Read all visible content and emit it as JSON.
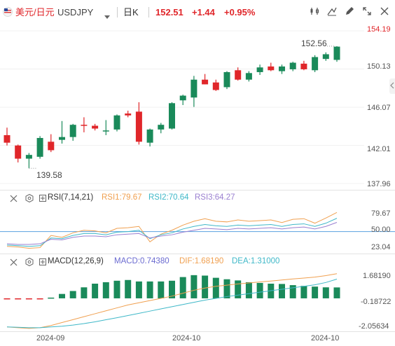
{
  "header": {
    "symbol_cn": "美元/日元",
    "symbol": "USDJPY",
    "period": "日K",
    "price": "152.51",
    "change": "+1.44",
    "change_pct": "+0.95%"
  },
  "colors": {
    "up": "#1a8a5a",
    "down": "#e0262a",
    "rsi1": "#f0a050",
    "rsi2": "#3fb8c8",
    "rsi3": "#9a7fd0",
    "macd": "#6a6ad0",
    "dif": "#f0a050",
    "dea": "#3fb8c8"
  },
  "icons": [
    "flag-icon",
    "chevron-down-icon",
    "candle-type-icon",
    "draw-icon",
    "pen-icon",
    "expand-icon",
    "close-icon",
    "zoom-out-icon",
    "settings-icon"
  ],
  "main": {
    "y_labels": [
      "154.19",
      "150.13",
      "146.07",
      "142.01",
      "137.96"
    ],
    "max_label": "152.56",
    "min_label": "139.58"
  },
  "rsi": {
    "name": "RSI(7,14,21)",
    "rsi1": "RSI1:79.67",
    "rsi2": "RSI2:70.64",
    "rsi3": "RSI3:64.27",
    "y_labels": [
      "79.67",
      "50.00",
      "23.04"
    ]
  },
  "macd": {
    "name": "MACD(12,26,9)",
    "macd": "MACD:0.74380",
    "dif": "DIF:1.68190",
    "dea": "DEA:1.31000",
    "y_labels": [
      "1.68190",
      "-0.18722",
      "-2.05634"
    ]
  },
  "x_labels": [
    "2024-09",
    "2024-10",
    "2024-10"
  ],
  "chart_data": [
    {
      "type": "candlestick",
      "title": "USDJPY",
      "ylim": [
        137.96,
        154.19
      ],
      "candles": [
        {
          "o": 143.1,
          "h": 143.9,
          "l": 142.0,
          "c": 142.3
        },
        {
          "o": 142.0,
          "h": 142.1,
          "l": 140.2,
          "c": 140.6
        },
        {
          "o": 140.6,
          "h": 141.2,
          "l": 139.58,
          "c": 141.0
        },
        {
          "o": 140.8,
          "h": 143.0,
          "l": 140.6,
          "c": 142.8
        },
        {
          "o": 142.4,
          "h": 143.2,
          "l": 141.3,
          "c": 141.5
        },
        {
          "o": 142.6,
          "h": 144.6,
          "l": 142.2,
          "c": 142.9
        },
        {
          "o": 142.9,
          "h": 144.3,
          "l": 142.5,
          "c": 144.2
        },
        {
          "o": 144.2,
          "h": 145.0,
          "l": 143.4,
          "c": 144.1
        },
        {
          "o": 144.1,
          "h": 144.3,
          "l": 143.6,
          "c": 143.8
        },
        {
          "o": 143.5,
          "h": 144.7,
          "l": 143.1,
          "c": 143.6
        },
        {
          "o": 143.7,
          "h": 145.3,
          "l": 143.5,
          "c": 145.2
        },
        {
          "o": 145.4,
          "h": 145.7,
          "l": 145.0,
          "c": 145.2
        },
        {
          "o": 145.6,
          "h": 146.6,
          "l": 142.1,
          "c": 142.4
        },
        {
          "o": 142.3,
          "h": 143.8,
          "l": 141.9,
          "c": 143.7
        },
        {
          "o": 143.7,
          "h": 144.4,
          "l": 143.3,
          "c": 144.2
        },
        {
          "o": 143.8,
          "h": 146.6,
          "l": 143.7,
          "c": 146.5
        },
        {
          "o": 146.8,
          "h": 147.4,
          "l": 146.3,
          "c": 147.3
        },
        {
          "o": 147.1,
          "h": 149.4,
          "l": 146.1,
          "c": 149.0
        },
        {
          "o": 149.0,
          "h": 149.6,
          "l": 148.5,
          "c": 148.5
        },
        {
          "o": 148.7,
          "h": 149.0,
          "l": 147.8,
          "c": 147.9
        },
        {
          "o": 148.2,
          "h": 149.9,
          "l": 148.0,
          "c": 149.8
        },
        {
          "o": 150.0,
          "h": 150.3,
          "l": 148.9,
          "c": 149.0
        },
        {
          "o": 149.0,
          "h": 149.9,
          "l": 148.8,
          "c": 149.7
        },
        {
          "o": 149.8,
          "h": 150.6,
          "l": 149.5,
          "c": 150.3
        },
        {
          "o": 150.4,
          "h": 150.8,
          "l": 149.9,
          "c": 150.0
        },
        {
          "o": 149.9,
          "h": 150.6,
          "l": 149.6,
          "c": 150.4
        },
        {
          "o": 150.1,
          "h": 150.9,
          "l": 149.9,
          "c": 150.8
        },
        {
          "o": 150.7,
          "h": 151.0,
          "l": 150.0,
          "c": 150.1
        },
        {
          "o": 150.0,
          "h": 151.6,
          "l": 149.8,
          "c": 151.4
        },
        {
          "o": 151.2,
          "h": 151.9,
          "l": 151.0,
          "c": 151.7
        },
        {
          "o": 151.1,
          "h": 152.56,
          "l": 150.9,
          "c": 152.51
        }
      ]
    },
    {
      "type": "line",
      "title": "RSI(7,14,21)",
      "ylim": [
        23.04,
        79.67
      ],
      "series": [
        {
          "name": "RSI1",
          "values": [
            27,
            26,
            24,
            25,
            44,
            41,
            48,
            52,
            51,
            48,
            55,
            56,
            58,
            34,
            46,
            52,
            60,
            66,
            70,
            66,
            65,
            68,
            66,
            67,
            68,
            64,
            69,
            70,
            63,
            71,
            79.67
          ]
        },
        {
          "name": "RSI2",
          "values": [
            29,
            28,
            27,
            28,
            40,
            39,
            44,
            47,
            47,
            45,
            49,
            50,
            52,
            39,
            45,
            48,
            54,
            58,
            61,
            59,
            58,
            60,
            59,
            60,
            61,
            58,
            61,
            62,
            58,
            63,
            70.64
          ]
        },
        {
          "name": "RSI3",
          "values": [
            31,
            30,
            30,
            31,
            38,
            37,
            41,
            43,
            43,
            42,
            45,
            46,
            47,
            40,
            43,
            45,
            49,
            52,
            55,
            54,
            53,
            55,
            54,
            55,
            56,
            54,
            56,
            57,
            54,
            58,
            64.27
          ]
        }
      ]
    },
    {
      "type": "bar",
      "title": "MACD(12,26,9)",
      "ylim": [
        -2.05634,
        1.6819
      ],
      "values": [
        -0.02,
        -0.05,
        -0.06,
        -0.05,
        0.05,
        0.3,
        0.5,
        0.75,
        1.0,
        1.1,
        1.2,
        1.25,
        1.15,
        1.15,
        1.15,
        1.2,
        1.45,
        1.58,
        1.55,
        1.4,
        1.3,
        1.22,
        1.1,
        1.05,
        1.0,
        0.98,
        0.9,
        0.85,
        0.8,
        0.75,
        0.7438
      ],
      "series": [
        {
          "name": "DIF",
          "values": [
            -1.95,
            -2.0,
            -2.05,
            -2.0,
            -1.85,
            -1.65,
            -1.45,
            -1.25,
            -1.05,
            -0.85,
            -0.65,
            -0.45,
            -0.3,
            -0.15,
            0.0,
            0.15,
            0.35,
            0.55,
            0.7,
            0.82,
            0.9,
            0.98,
            1.05,
            1.12,
            1.18,
            1.25,
            1.32,
            1.38,
            1.45,
            1.55,
            1.6819
          ]
        },
        {
          "name": "DEA",
          "values": [
            -1.95,
            -1.97,
            -2.0,
            -2.0,
            -1.95,
            -1.9,
            -1.82,
            -1.72,
            -1.6,
            -1.46,
            -1.32,
            -1.17,
            -1.02,
            -0.87,
            -0.72,
            -0.57,
            -0.42,
            -0.27,
            -0.12,
            0.0,
            0.12,
            0.22,
            0.32,
            0.42,
            0.52,
            0.62,
            0.72,
            0.82,
            0.92,
            1.08,
            1.31
          ]
        }
      ]
    }
  ]
}
